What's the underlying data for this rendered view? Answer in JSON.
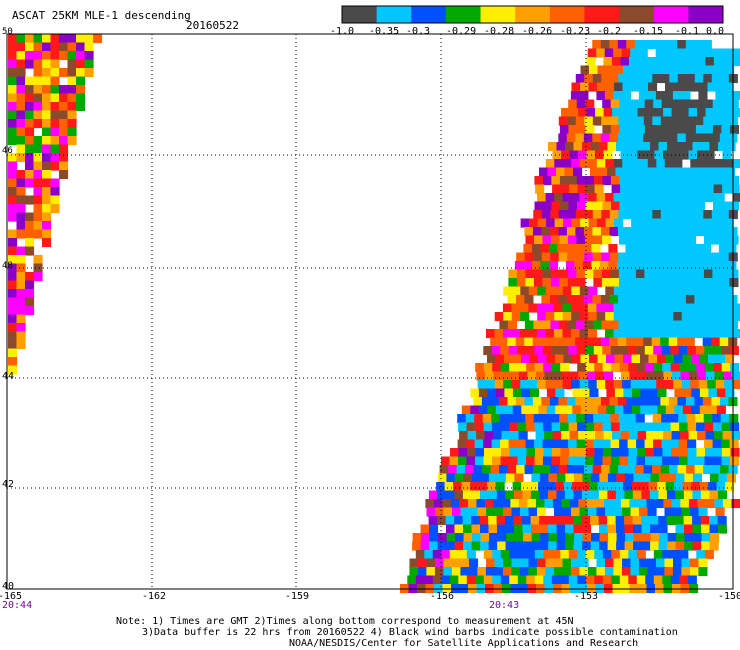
{
  "header": {
    "title": "ASCAT 25KM MLE-1 descending",
    "date": "20160522"
  },
  "colorbar": {
    "colors": [
      "#4a4a4a",
      "#00c8ff",
      "#0050ff",
      "#00a800",
      "#ffee00",
      "#ffa000",
      "#ff6000",
      "#ff1a1a",
      "#8b4a2b",
      "#ff00ff",
      "#8a00c8"
    ],
    "ticks": [
      "-1.0",
      "-0.35",
      "-0.3",
      "-0.29",
      "-0.28",
      "-0.26",
      "-0.23",
      "-0.2",
      "-0.15",
      "-0.1",
      "0.0"
    ]
  },
  "axes": {
    "lon_ticks": [
      "-165",
      "-162",
      "-159",
      "-156",
      "-153",
      "-150"
    ],
    "lat_ticks": [
      "50",
      "46",
      "48",
      "44",
      "42",
      "40"
    ]
  },
  "times": {
    "left": "20:44",
    "middle": "20:43"
  },
  "notes": {
    "line1": "Note: 1) Times are GMT 2)Times along bottom correspond to measurement at 45N",
    "line2": "3)Data buffer is 22 hrs from 20160522 4) Black wind barbs indicate possible contamination",
    "line3": "NOAA/NESDIS/Center for Satellite Applications and Research"
  }
}
